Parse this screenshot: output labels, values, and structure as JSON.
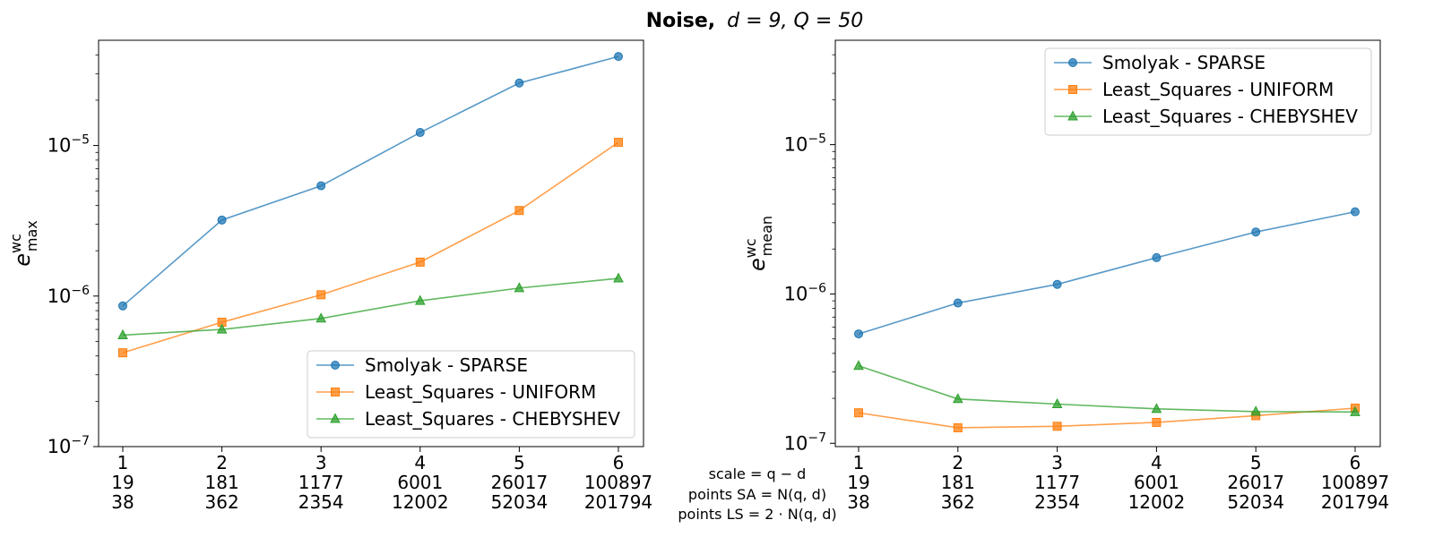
{
  "figure": {
    "title_main": "Noise,",
    "title_params": "d = 9, Q = 50",
    "center_labels": [
      "scale = q − d",
      "points SA = N(q, d)",
      "points LS = 2 · N(q, d)"
    ],
    "colors": {
      "sparse": "#1f77b4",
      "uniform": "#ff7f0e",
      "chebyshev": "#2ca02c"
    }
  },
  "chart_data": [
    {
      "type": "line",
      "yscale": "log",
      "ylim": [
        1e-07,
        5e-05
      ],
      "ylabel": "e",
      "ylabel_sup": "wc",
      "ylabel_sub": "max",
      "x": [
        1,
        2,
        3,
        4,
        5,
        6
      ],
      "x_tick_rows": [
        [
          "1",
          "2",
          "3",
          "4",
          "5",
          "6"
        ],
        [
          "19",
          "181",
          "1177",
          "6001",
          "26017",
          "100897"
        ],
        [
          "38",
          "362",
          "2354",
          "12002",
          "52034",
          "201794"
        ]
      ],
      "y_ticks": [
        {
          "value": 1e-07,
          "exp": "−7"
        },
        {
          "value": 1e-06,
          "exp": "−6"
        },
        {
          "value": 1e-05,
          "exp": "−5"
        }
      ],
      "legend_position": "lower-right",
      "series": [
        {
          "name": "Smolyak - SPARSE",
          "marker": "circle",
          "color": "#1f77b4",
          "values": [
            8.6e-07,
            3.2e-06,
            5.4e-06,
            1.22e-05,
            2.6e-05,
            3.9e-05
          ]
        },
        {
          "name": "Least_Squares - UNIFORM",
          "marker": "square",
          "color": "#ff7f0e",
          "values": [
            4.2e-07,
            6.7e-07,
            1.02e-06,
            1.68e-06,
            3.7e-06,
            1.05e-05
          ]
        },
        {
          "name": "Least_Squares - CHEBYSHEV",
          "marker": "triangle",
          "color": "#2ca02c",
          "values": [
            5.5e-07,
            6e-07,
            7.1e-07,
            9.3e-07,
            1.13e-06,
            1.31e-06
          ]
        }
      ]
    },
    {
      "type": "line",
      "yscale": "log",
      "ylim": [
        9.5e-08,
        5e-05
      ],
      "ylabel": "e",
      "ylabel_sup": "wc",
      "ylabel_sub": "mean",
      "x": [
        1,
        2,
        3,
        4,
        5,
        6
      ],
      "x_tick_rows": [
        [
          "1",
          "2",
          "3",
          "4",
          "5",
          "6"
        ],
        [
          "19",
          "181",
          "1177",
          "6001",
          "26017",
          "100897"
        ],
        [
          "38",
          "362",
          "2354",
          "12002",
          "52034",
          "201794"
        ]
      ],
      "y_ticks": [
        {
          "value": 1e-07,
          "exp": "−7"
        },
        {
          "value": 1e-06,
          "exp": "−6"
        },
        {
          "value": 1e-05,
          "exp": "−5"
        }
      ],
      "legend_position": "upper-right",
      "series": [
        {
          "name": "Smolyak - SPARSE",
          "marker": "circle",
          "color": "#1f77b4",
          "values": [
            5.4e-07,
            8.7e-07,
            1.16e-06,
            1.75e-06,
            2.6e-06,
            3.55e-06
          ]
        },
        {
          "name": "Least_Squares - UNIFORM",
          "marker": "square",
          "color": "#ff7f0e",
          "values": [
            1.6e-07,
            1.27e-07,
            1.3e-07,
            1.38e-07,
            1.53e-07,
            1.72e-07
          ]
        },
        {
          "name": "Least_Squares - CHEBYSHEV",
          "marker": "triangle",
          "color": "#2ca02c",
          "values": [
            3.3e-07,
            1.98e-07,
            1.83e-07,
            1.7e-07,
            1.63e-07,
            1.62e-07
          ]
        }
      ]
    }
  ]
}
